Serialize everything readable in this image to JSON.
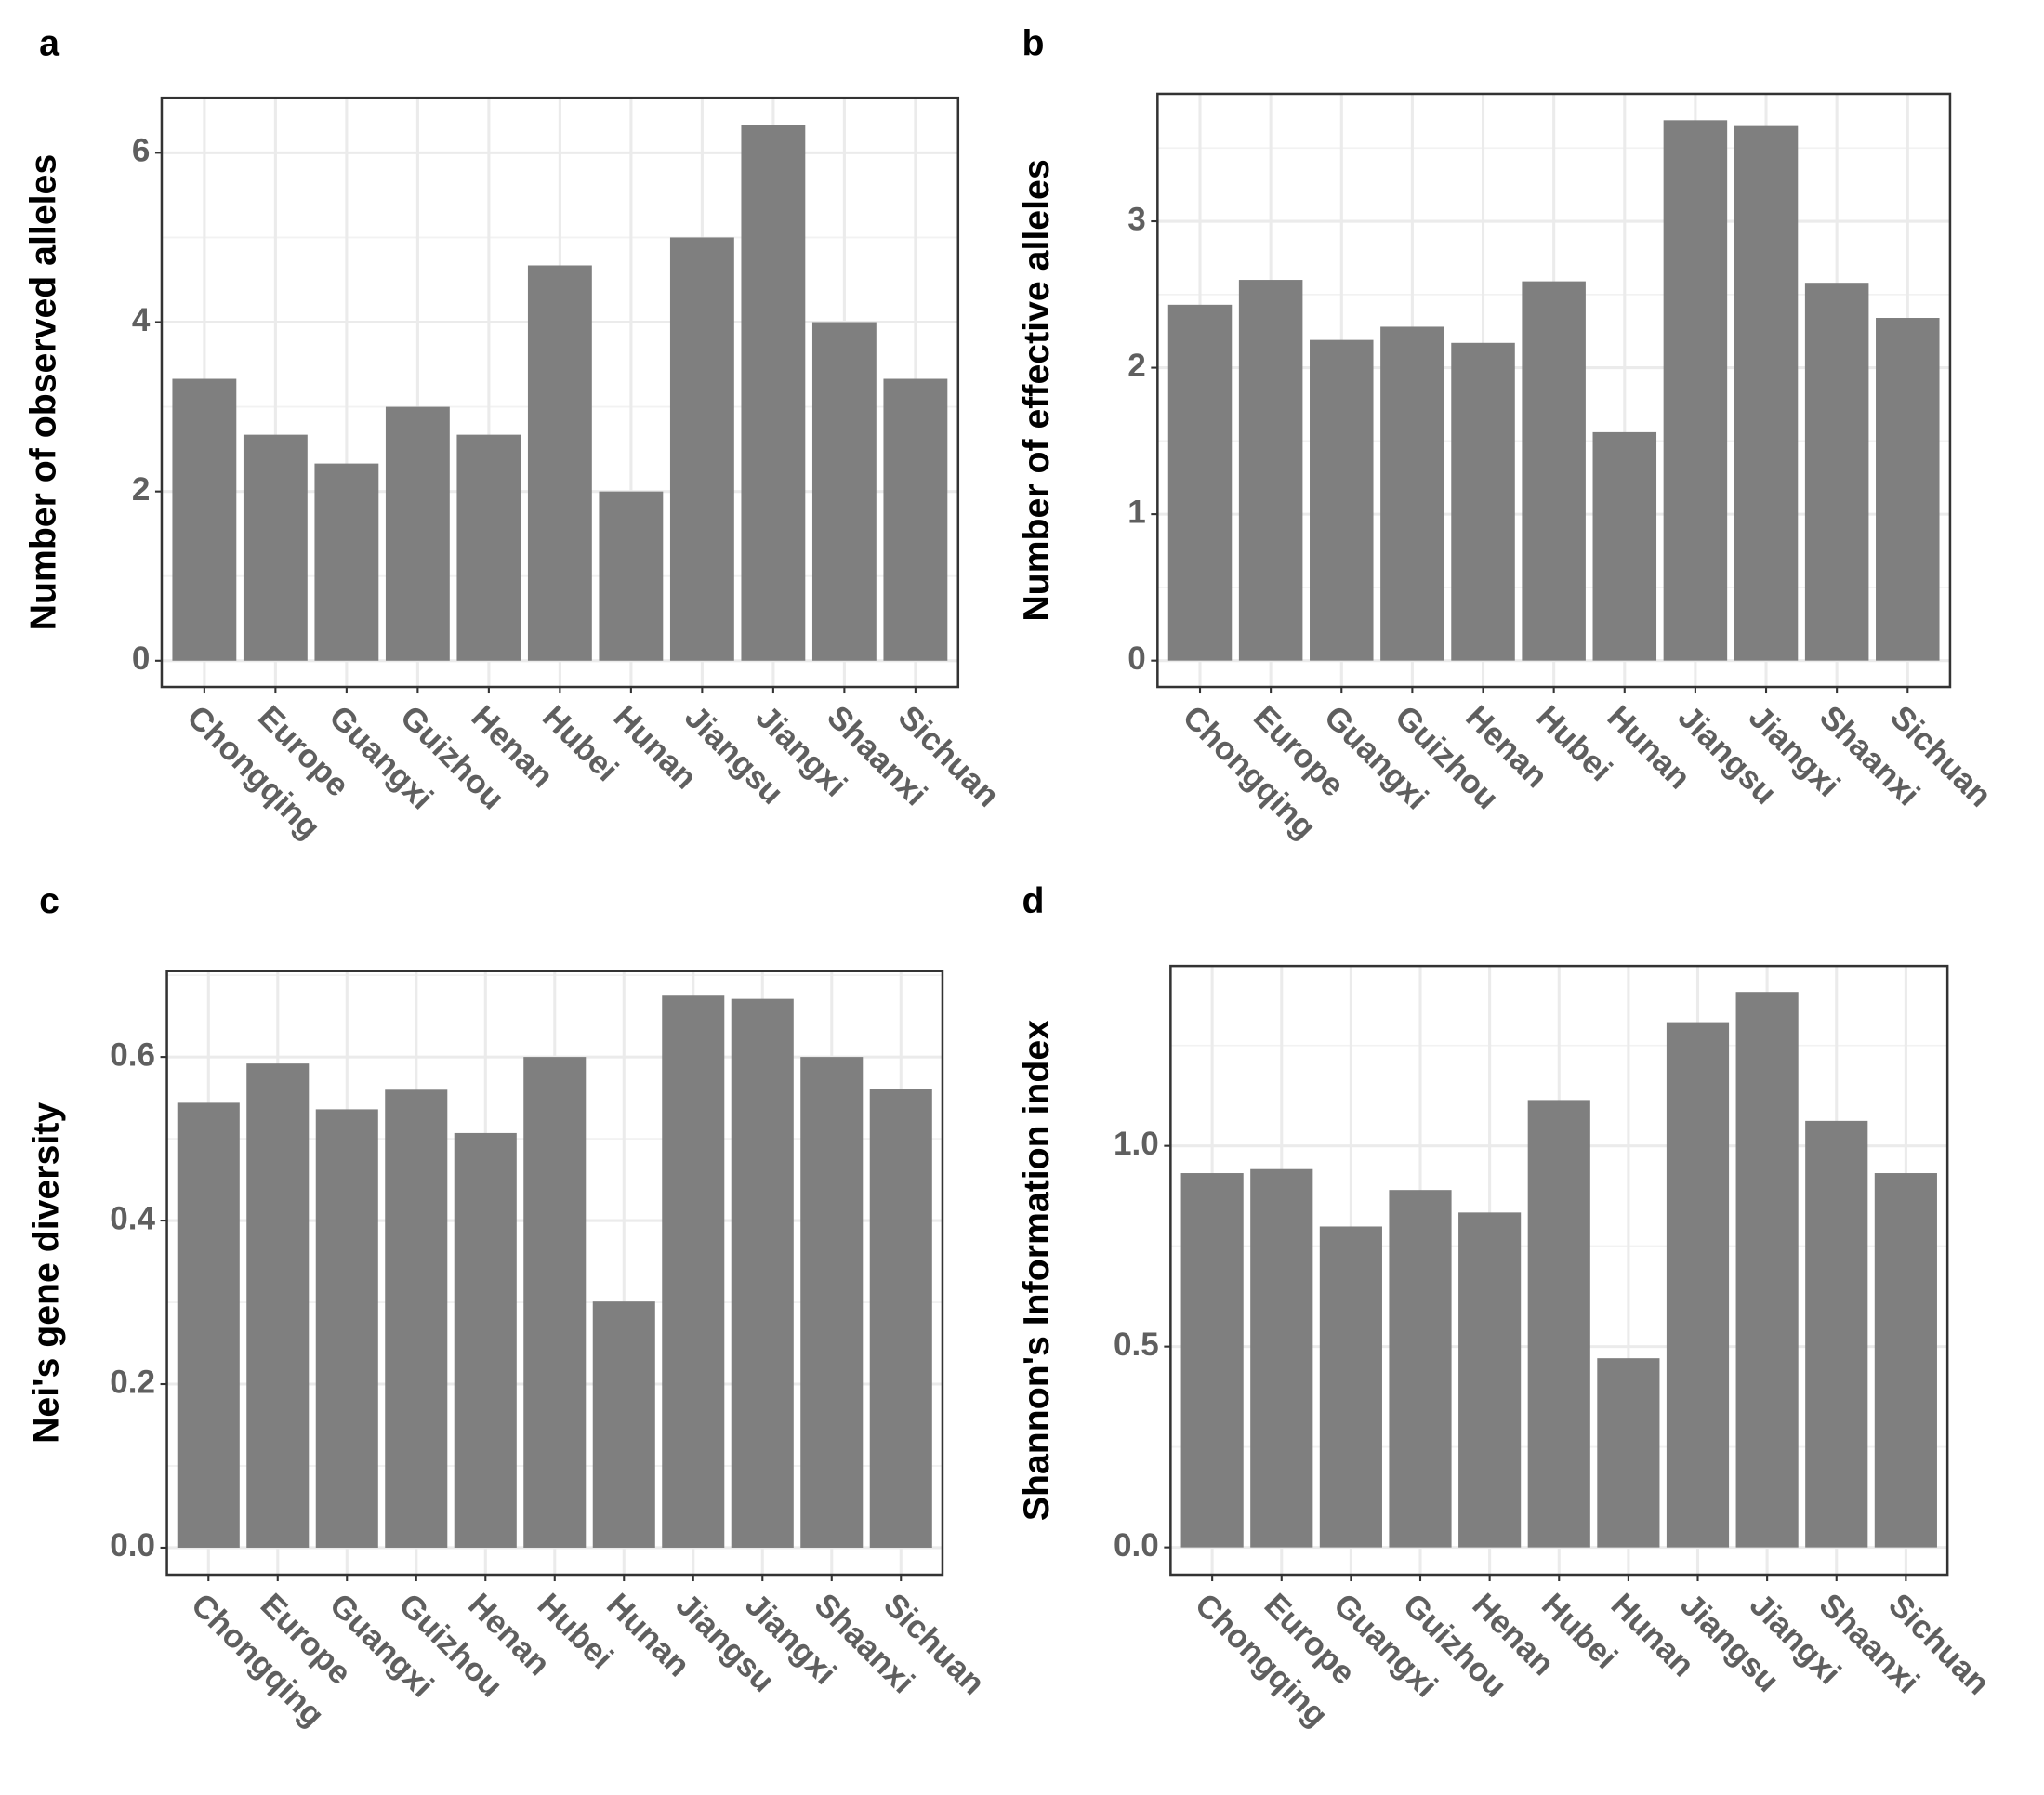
{
  "chart_data": [
    {
      "type": "bar",
      "panel_label": "a",
      "ylabel": "Number of  observed alleles",
      "categories": [
        "Chongqing",
        "Europe",
        "Guangxi",
        "Guizhou",
        "Henan",
        "Hubei",
        "Hunan",
        "Jiangsu",
        "Jiangxi",
        "Shaanxi",
        "Sichuan"
      ],
      "values": [
        3.33,
        2.67,
        2.33,
        3.0,
        2.67,
        4.67,
        2.0,
        5.0,
        6.33,
        4.0,
        3.33
      ],
      "color": "#7f7f7f",
      "ylim": [
        -0.31,
        6.65
      ],
      "yticks": [
        0,
        2,
        4,
        6
      ],
      "grid": true
    },
    {
      "type": "bar",
      "panel_label": "b",
      "ylabel": "Number of effective alleles",
      "categories": [
        "Chongqing",
        "Europe",
        "Guangxi",
        "Guizhou",
        "Henan",
        "Hubei",
        "Hunan",
        "Jiangsu",
        "Jiangxi",
        "Shaanxi",
        "Sichuan"
      ],
      "values": [
        2.43,
        2.6,
        2.19,
        2.28,
        2.17,
        2.59,
        1.56,
        3.69,
        3.65,
        2.58,
        2.34
      ],
      "color": "#7f7f7f",
      "ylim": [
        -0.18,
        3.87
      ],
      "yticks": [
        0,
        1,
        2,
        3
      ],
      "grid": true
    },
    {
      "type": "bar",
      "panel_label": "c",
      "ylabel": "Nei's gene diversity",
      "categories": [
        "Chongqing",
        "Europe",
        "Guangxi",
        "Guizhou",
        "Henan",
        "Hubei",
        "Hunan",
        "Jiangsu",
        "Jiangxi",
        "Shaanxi",
        "Sichuan"
      ],
      "values": [
        0.544,
        0.592,
        0.536,
        0.56,
        0.507,
        0.6,
        0.301,
        0.676,
        0.671,
        0.6,
        0.561
      ],
      "color": "#7f7f7f",
      "ylim": [
        -0.033,
        0.705
      ],
      "yticks": [
        {
          "value": 0,
          "label": "0.0"
        },
        {
          "value": 0.2,
          "label": "0.2"
        },
        {
          "value": 0.4,
          "label": "0.4"
        },
        {
          "value": 0.6,
          "label": "0.6"
        }
      ],
      "grid": true
    },
    {
      "type": "bar",
      "panel_label": "d",
      "ylabel": "Shannon's Information index",
      "categories": [
        "Chongqing",
        "Europe",
        "Guangxi",
        "Guizhou",
        "Henan",
        "Hubei",
        "Hunan",
        "Jiangsu",
        "Jiangxi",
        "Shaanxi",
        "Sichuan"
      ],
      "values": [
        0.932,
        0.942,
        0.799,
        0.89,
        0.834,
        1.114,
        0.471,
        1.308,
        1.383,
        1.062,
        0.932
      ],
      "color": "#7f7f7f",
      "ylim": [
        -0.068,
        1.448
      ],
      "yticks": [
        {
          "value": 0,
          "label": "0.0"
        },
        {
          "value": 0.5,
          "label": "0.5"
        },
        {
          "value": 1.0,
          "label": "1.0"
        }
      ],
      "grid": true
    }
  ]
}
